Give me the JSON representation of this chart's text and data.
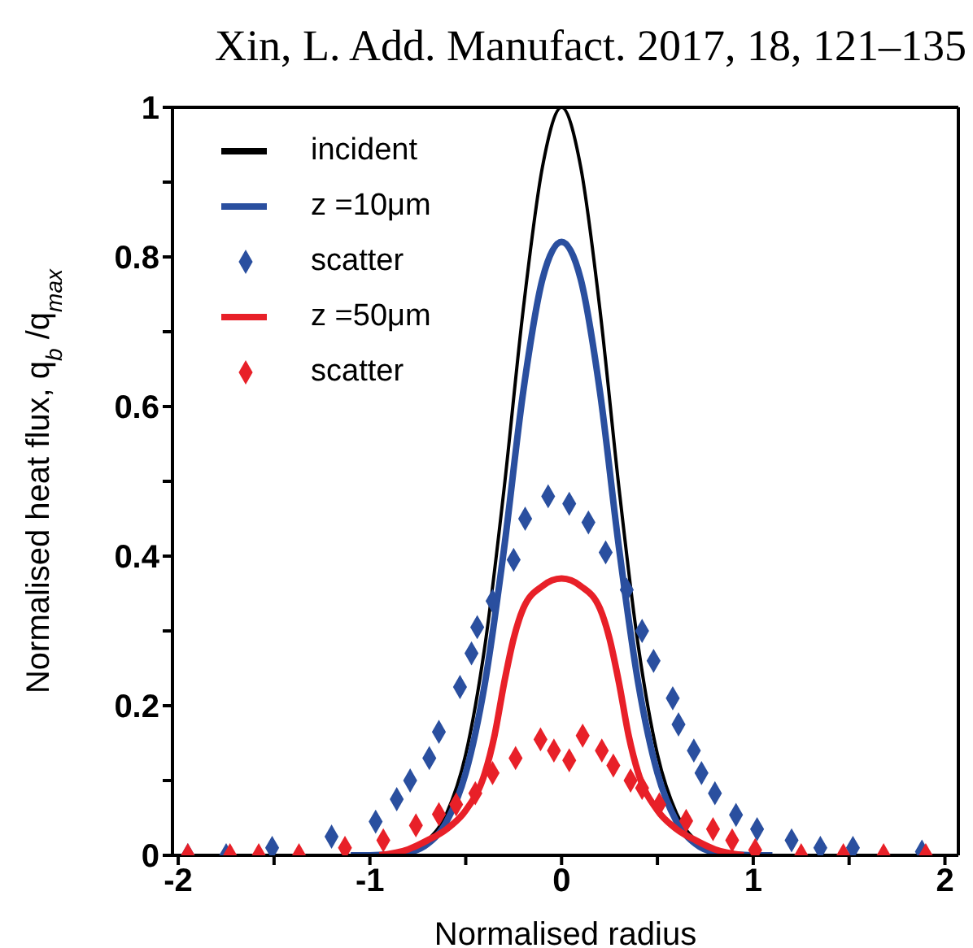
{
  "chart_data": {
    "type": "line",
    "title": "Xin, L. Add. Manufact. 2017, 18, 121–135",
    "xlabel": "Normalised radius",
    "ylabel": "Normalised heat flux, q$_{b}$ /q$_{max}$",
    "xlim": [
      -2.03,
      2.07
    ],
    "ylim": [
      0,
      1
    ],
    "xticks": [
      -2,
      {
        "value": -1.5,
        "label": null
      },
      -1,
      {
        "value": -0.5,
        "label": null
      },
      0,
      {
        "value": 0.5,
        "label": null
      },
      1,
      {
        "value": 1.5,
        "label": null
      },
      2
    ],
    "yticks": [
      0,
      {
        "value": 0.1,
        "label": null
      },
      0.2,
      {
        "value": 0.3,
        "label": null
      },
      0.4,
      {
        "value": 0.5,
        "label": null
      },
      0.6,
      {
        "value": 0.7,
        "label": null
      },
      0.8,
      {
        "value": 0.9,
        "label": null
      },
      1
    ],
    "grid": false,
    "legend": "top left",
    "line_style": "solid",
    "series": [
      {
        "name": "incident",
        "color": "#000000",
        "x": [
          -1.2,
          -1,
          -0.8,
          -0.7,
          -0.6,
          -0.5,
          -0.4,
          -0.3,
          -0.2,
          -0.1,
          0,
          0.1,
          0.2,
          0.3,
          0.4,
          0.5,
          0.6,
          0.7,
          0.8,
          1,
          1.2
        ],
        "values": [
          0,
          0,
          0.006,
          0.02,
          0.056,
          0.135,
          0.28,
          0.49,
          0.73,
          0.92,
          1,
          0.92,
          0.73,
          0.49,
          0.28,
          0.135,
          0.056,
          0.02,
          0.006,
          0,
          0
        ]
      },
      {
        "name": "z =10μm",
        "color": "#2a4f9f",
        "x": [
          -1.1,
          -1,
          -0.8,
          -0.7,
          -0.6,
          -0.5,
          -0.4,
          -0.3,
          -0.2,
          -0.1,
          0,
          0.1,
          0.2,
          0.3,
          0.4,
          0.5,
          0.6,
          0.7,
          0.8,
          1,
          1.1
        ],
        "values": [
          0,
          0,
          0.004,
          0.015,
          0.045,
          0.11,
          0.23,
          0.41,
          0.62,
          0.77,
          0.82,
          0.77,
          0.62,
          0.41,
          0.23,
          0.11,
          0.045,
          0.015,
          0.004,
          0,
          0
        ]
      },
      {
        "name": "scatter",
        "type": "scatter",
        "marker": "diamond",
        "color": "#2a4f9f",
        "x": [
          -1.95,
          -1.75,
          -1.51,
          -1.2,
          -0.97,
          -0.86,
          -0.79,
          -0.69,
          -0.64,
          -0.53,
          -0.47,
          -0.44,
          -0.36,
          -0.25,
          -0.19,
          -0.07,
          0.04,
          0.14,
          0.23,
          0.34,
          0.42,
          0.48,
          0.58,
          0.61,
          0.69,
          0.73,
          0.8,
          0.91,
          1.02,
          1.2,
          1.35,
          1.52,
          1.88
        ],
        "values": [
          0,
          0,
          0.01,
          0.025,
          0.045,
          0.075,
          0.1,
          0.13,
          0.165,
          0.225,
          0.27,
          0.305,
          0.34,
          0.395,
          0.45,
          0.48,
          0.47,
          0.445,
          0.405,
          0.355,
          0.3,
          0.26,
          0.21,
          0.175,
          0.14,
          0.11,
          0.083,
          0.054,
          0.035,
          0.02,
          0.01,
          0.01,
          0.005
        ]
      },
      {
        "name": "z =50μm",
        "color": "#e82028",
        "x": [
          -0.95,
          -0.8,
          -0.7,
          -0.6,
          -0.5,
          -0.4,
          -0.35,
          -0.3,
          -0.25,
          -0.2,
          -0.1,
          0,
          0.1,
          0.2,
          0.25,
          0.3,
          0.35,
          0.4,
          0.5,
          0.6,
          0.7,
          0.8,
          0.95
        ],
        "values": [
          0,
          0.008,
          0.02,
          0.035,
          0.06,
          0.11,
          0.16,
          0.23,
          0.29,
          0.33,
          0.36,
          0.37,
          0.36,
          0.33,
          0.29,
          0.23,
          0.16,
          0.11,
          0.06,
          0.035,
          0.02,
          0.008,
          0
        ]
      },
      {
        "name": "scatter",
        "type": "scatter",
        "marker": "diamond",
        "color": "#e82028",
        "x": [
          -1.95,
          -1.73,
          -1.58,
          -1.37,
          -1.13,
          -0.93,
          -0.76,
          -0.64,
          -0.55,
          -0.45,
          -0.36,
          -0.24,
          -0.11,
          -0.04,
          0.04,
          0.11,
          0.21,
          0.27,
          0.36,
          0.42,
          0.51,
          0.65,
          0.79,
          0.89,
          1.01,
          1.25,
          1.47,
          1.68,
          1.9
        ],
        "values": [
          0,
          0,
          0,
          0,
          0.01,
          0.02,
          0.04,
          0.055,
          0.068,
          0.083,
          0.11,
          0.13,
          0.155,
          0.14,
          0.127,
          0.16,
          0.14,
          0.12,
          0.1,
          0.09,
          0.068,
          0.046,
          0.035,
          0.02,
          0.007,
          0,
          0,
          0,
          0
        ]
      }
    ]
  }
}
